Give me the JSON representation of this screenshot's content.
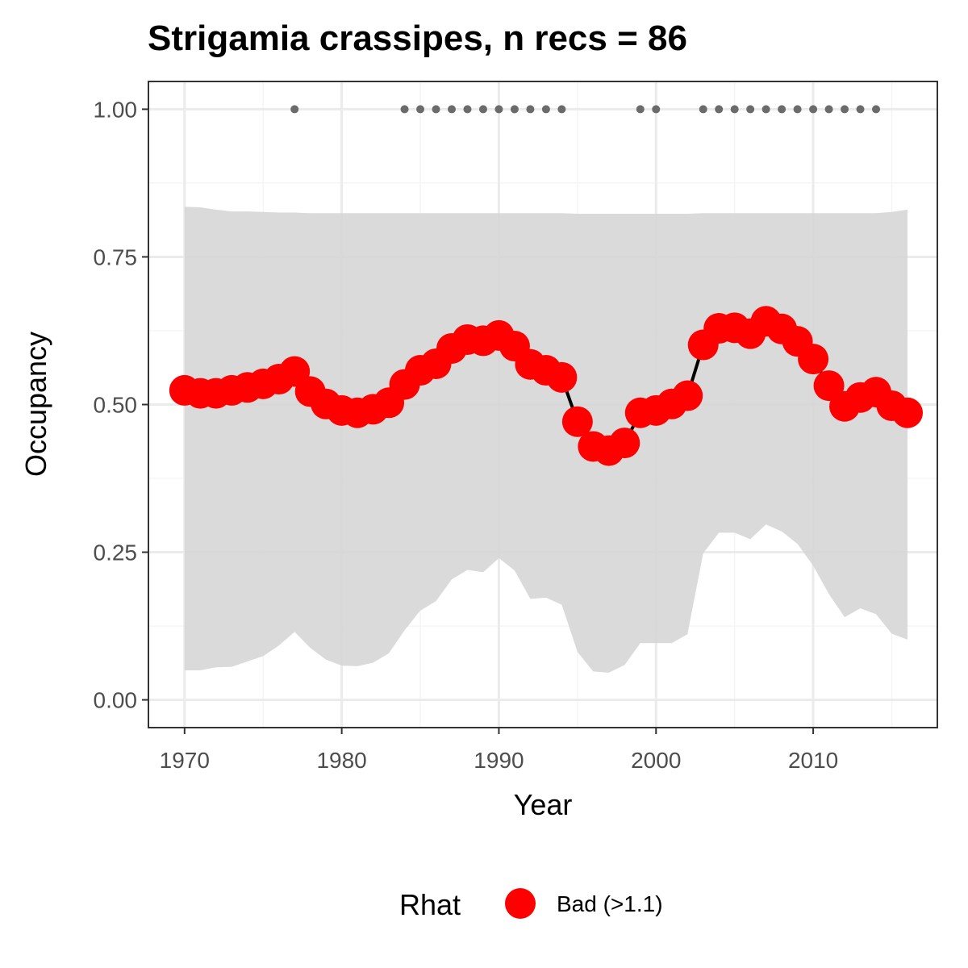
{
  "chart_data": {
    "type": "line",
    "title": "Strigamia crassipes, n recs = 86",
    "xlabel": "Year",
    "ylabel": "Occupancy",
    "xlim": [
      1967.7,
      2017.9
    ],
    "ylim": [
      -0.047,
      1.047
    ],
    "x_ticks": [
      1970,
      1980,
      1990,
      2000,
      2010
    ],
    "x_tick_labels": [
      "1970",
      "1980",
      "1990",
      "2000",
      "2010"
    ],
    "y_ticks": [
      0,
      0.25,
      0.5,
      0.75,
      1.0
    ],
    "y_tick_labels": [
      "0.00",
      "0.25",
      "0.50",
      "0.75",
      "1.00"
    ],
    "grid": true,
    "years": [
      1970,
      1971,
      1972,
      1973,
      1974,
      1975,
      1976,
      1977,
      1978,
      1979,
      1980,
      1981,
      1982,
      1983,
      1984,
      1985,
      1986,
      1987,
      1988,
      1989,
      1990,
      1991,
      1992,
      1993,
      1994,
      1995,
      1996,
      1997,
      1998,
      1999,
      2000,
      2001,
      2002,
      2003,
      2004,
      2005,
      2006,
      2007,
      2008,
      2009,
      2010,
      2011,
      2012,
      2013,
      2014,
      2015,
      2016
    ],
    "occupancy": [
      0.524,
      0.519,
      0.519,
      0.524,
      0.529,
      0.535,
      0.543,
      0.556,
      0.522,
      0.501,
      0.49,
      0.486,
      0.492,
      0.503,
      0.534,
      0.558,
      0.569,
      0.595,
      0.61,
      0.608,
      0.617,
      0.599,
      0.568,
      0.558,
      0.546,
      0.471,
      0.429,
      0.422,
      0.435,
      0.486,
      0.49,
      0.501,
      0.515,
      0.601,
      0.629,
      0.63,
      0.62,
      0.641,
      0.628,
      0.607,
      0.577,
      0.532,
      0.497,
      0.512,
      0.521,
      0.498,
      0.486
    ],
    "line_breaks_after": [
      1994,
      1995,
      1996,
      1997,
      1998,
      2002
    ],
    "ci_lower": [
      0.05,
      0.05,
      0.055,
      0.056,
      0.065,
      0.074,
      0.092,
      0.115,
      0.088,
      0.068,
      0.058,
      0.057,
      0.063,
      0.079,
      0.118,
      0.151,
      0.167,
      0.204,
      0.22,
      0.216,
      0.24,
      0.219,
      0.171,
      0.173,
      0.161,
      0.081,
      0.048,
      0.046,
      0.059,
      0.096,
      0.096,
      0.096,
      0.111,
      0.248,
      0.283,
      0.283,
      0.272,
      0.297,
      0.285,
      0.264,
      0.227,
      0.179,
      0.14,
      0.155,
      0.145,
      0.112,
      0.102
    ],
    "ci_upper": [
      0.835,
      0.834,
      0.83,
      0.827,
      0.827,
      0.826,
      0.825,
      0.825,
      0.824,
      0.824,
      0.824,
      0.824,
      0.824,
      0.824,
      0.824,
      0.824,
      0.824,
      0.824,
      0.824,
      0.824,
      0.824,
      0.824,
      0.824,
      0.824,
      0.824,
      0.823,
      0.823,
      0.823,
      0.823,
      0.823,
      0.823,
      0.823,
      0.823,
      0.824,
      0.824,
      0.824,
      0.824,
      0.824,
      0.824,
      0.824,
      0.824,
      0.824,
      0.824,
      0.824,
      0.824,
      0.826,
      0.83
    ],
    "record_years": [
      1977,
      1984,
      1985,
      1986,
      1987,
      1988,
      1989,
      1990,
      1991,
      1992,
      1993,
      1994,
      1999,
      2000,
      2003,
      2004,
      2005,
      2006,
      2007,
      2008,
      2009,
      2010,
      2011,
      2012,
      2013,
      2014
    ],
    "record_y": 1.0,
    "legend": {
      "title": "Rhat",
      "label": "Bad (>1.1)",
      "position": "bottom"
    },
    "colors": {
      "point": "#ff0000",
      "line": "#000000",
      "ribbon": "#d6d6d6",
      "records": "#6b6b6b",
      "grid_major": "#ebebeb",
      "grid_minor": "#f5f5f5",
      "panel_border": "#333333"
    }
  }
}
